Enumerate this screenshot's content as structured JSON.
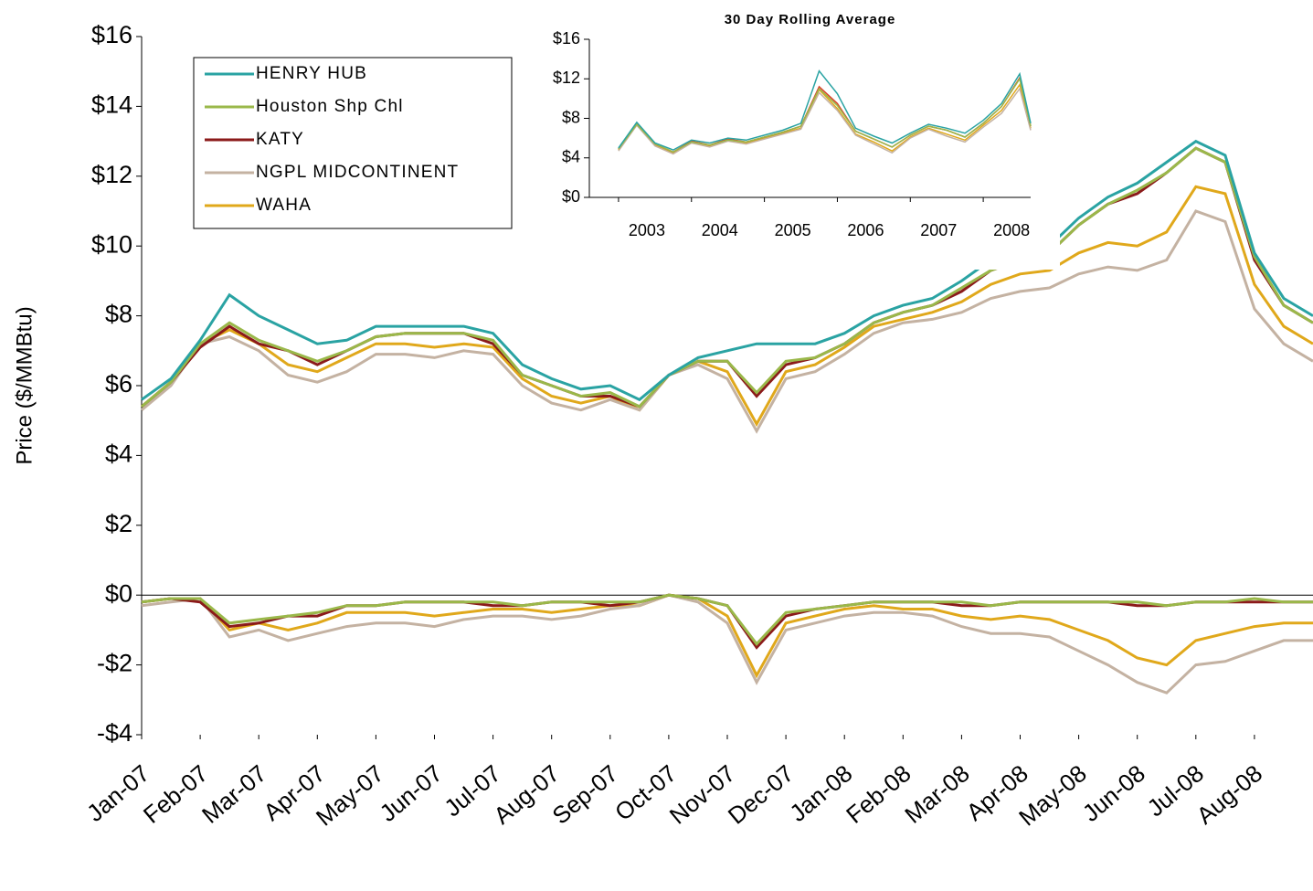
{
  "chart_data": [
    {
      "type": "line",
      "ylabel": "Price ($/MMBtu)",
      "legend": "upper left",
      "x": [
        0,
        0.5,
        1,
        1.5,
        2,
        2.5,
        3,
        3.5,
        4,
        4.5,
        5,
        5.5,
        6,
        6.5,
        7,
        7.5,
        8,
        8.5,
        9,
        9.5,
        10,
        10.5,
        11,
        11.5,
        12,
        12.5,
        13,
        13.5,
        14,
        14.5,
        15,
        15.5,
        16,
        16.5,
        17,
        17.5,
        18,
        18.5,
        19,
        19.5,
        20
      ],
      "xlim": [
        0,
        20
      ],
      "xticks": [
        {
          "value": 0,
          "label": "Jan-07"
        },
        {
          "value": 1,
          "label": "Feb-07"
        },
        {
          "value": 2,
          "label": "Mar-07"
        },
        {
          "value": 3,
          "label": "Apr-07"
        },
        {
          "value": 4,
          "label": "May-07"
        },
        {
          "value": 5,
          "label": "Jun-07"
        },
        {
          "value": 6,
          "label": "Jul-07"
        },
        {
          "value": 7,
          "label": "Aug-07"
        },
        {
          "value": 8,
          "label": "Sep-07"
        },
        {
          "value": 9,
          "label": "Oct-07"
        },
        {
          "value": 10,
          "label": "Nov-07"
        },
        {
          "value": 11,
          "label": "Dec-07"
        },
        {
          "value": 12,
          "label": "Jan-08"
        },
        {
          "value": 13,
          "label": "Feb-08"
        },
        {
          "value": 14,
          "label": "Mar-08"
        },
        {
          "value": 15,
          "label": "Apr-08"
        },
        {
          "value": 16,
          "label": "May-08"
        },
        {
          "value": 17,
          "label": "Jun-08"
        },
        {
          "value": 18,
          "label": "Jul-08"
        },
        {
          "value": 19,
          "label": "Aug-08"
        }
      ],
      "ylim": [
        -4,
        16
      ],
      "yticks": [
        {
          "value": 16,
          "label": "$16"
        },
        {
          "value": 14,
          "label": "$14"
        },
        {
          "value": 12,
          "label": "$12"
        },
        {
          "value": 10,
          "label": "$10"
        },
        {
          "value": 8,
          "label": "$8"
        },
        {
          "value": 6,
          "label": "$6"
        },
        {
          "value": 4,
          "label": "$4"
        },
        {
          "value": 2,
          "label": "$2"
        },
        {
          "value": 0,
          "label": "$0"
        },
        {
          "value": -2,
          "label": "-$2"
        },
        {
          "value": -4,
          "label": "-$4"
        }
      ],
      "grid": false,
      "series": [
        {
          "name": "HENRY HUB",
          "color": "#2aa3a3",
          "values": [
            5.6,
            6.2,
            7.3,
            8.6,
            8.0,
            7.6,
            7.2,
            7.3,
            7.7,
            7.7,
            7.7,
            7.7,
            7.5,
            6.6,
            6.2,
            5.9,
            6.0,
            5.6,
            6.3,
            6.8,
            7.0,
            7.2,
            7.2,
            7.2,
            7.5,
            8.0,
            8.3,
            8.5,
            9.0,
            9.6,
            9.8,
            10.0,
            10.8,
            11.4,
            11.8,
            12.4,
            13.0,
            12.6,
            9.8,
            8.5,
            8.0
          ]
        },
        {
          "name": "Houston Shp Chl",
          "color": "#9ab84a",
          "values": [
            5.4,
            6.1,
            7.2,
            7.8,
            7.3,
            7.0,
            6.7,
            7.0,
            7.4,
            7.5,
            7.5,
            7.5,
            7.3,
            6.3,
            6.0,
            5.7,
            5.8,
            5.4,
            6.3,
            6.7,
            6.7,
            5.8,
            6.7,
            6.8,
            7.2,
            7.8,
            8.1,
            8.3,
            8.8,
            9.3,
            9.6,
            9.8,
            10.6,
            11.2,
            11.6,
            12.1,
            12.8,
            12.4,
            9.7,
            8.3,
            7.8
          ],
          "basis": [
            -0.2,
            -0.1,
            -0.1,
            -0.8,
            -0.7,
            -0.6,
            -0.5,
            -0.3,
            -0.3,
            -0.2,
            -0.2,
            -0.2,
            -0.2,
            -0.3,
            -0.2,
            -0.2,
            -0.2,
            -0.2,
            0.0,
            -0.1,
            -0.3,
            -1.4,
            -0.5,
            -0.4,
            -0.3,
            -0.2,
            -0.2,
            -0.2,
            -0.2,
            -0.3,
            -0.2,
            -0.2,
            -0.2,
            -0.2,
            -0.2,
            -0.3,
            -0.2,
            -0.2,
            -0.1,
            -0.2,
            -0.2
          ]
        },
        {
          "name": "KATY",
          "color": "#8b1a1a",
          "values": [
            5.4,
            6.1,
            7.1,
            7.7,
            7.2,
            7.0,
            6.6,
            7.0,
            7.4,
            7.5,
            7.5,
            7.5,
            7.2,
            6.3,
            6.0,
            5.7,
            5.7,
            5.4,
            6.3,
            6.7,
            6.7,
            5.7,
            6.6,
            6.8,
            7.2,
            7.8,
            8.1,
            8.3,
            8.7,
            9.3,
            9.6,
            9.8,
            10.6,
            11.2,
            11.5,
            12.1,
            12.8,
            12.4,
            9.6,
            8.3,
            7.8
          ],
          "basis": [
            -0.2,
            -0.1,
            -0.2,
            -0.9,
            -0.8,
            -0.6,
            -0.6,
            -0.3,
            -0.3,
            -0.2,
            -0.2,
            -0.2,
            -0.3,
            -0.3,
            -0.2,
            -0.2,
            -0.3,
            -0.2,
            0.0,
            -0.1,
            -0.3,
            -1.5,
            -0.6,
            -0.4,
            -0.3,
            -0.2,
            -0.2,
            -0.2,
            -0.3,
            -0.3,
            -0.2,
            -0.2,
            -0.2,
            -0.2,
            -0.3,
            -0.3,
            -0.2,
            -0.2,
            -0.2,
            -0.2,
            -0.2
          ]
        },
        {
          "name": "NGPL MIDCONTINENT",
          "color": "#c4b2a2",
          "values": [
            5.3,
            6.0,
            7.2,
            7.4,
            7.0,
            6.3,
            6.1,
            6.4,
            6.9,
            6.9,
            6.8,
            7.0,
            6.9,
            6.0,
            5.5,
            5.3,
            5.6,
            5.3,
            6.3,
            6.6,
            6.2,
            4.7,
            6.2,
            6.4,
            6.9,
            7.5,
            7.8,
            7.9,
            8.1,
            8.5,
            8.7,
            8.8,
            9.2,
            9.4,
            9.3,
            9.6,
            11.0,
            10.7,
            8.2,
            7.2,
            6.7
          ],
          "basis": [
            -0.3,
            -0.2,
            -0.1,
            -1.2,
            -1.0,
            -1.3,
            -1.1,
            -0.9,
            -0.8,
            -0.8,
            -0.9,
            -0.7,
            -0.6,
            -0.6,
            -0.7,
            -0.6,
            -0.4,
            -0.3,
            0.0,
            -0.2,
            -0.8,
            -2.5,
            -1.0,
            -0.8,
            -0.6,
            -0.5,
            -0.5,
            -0.6,
            -0.9,
            -1.1,
            -1.1,
            -1.2,
            -1.6,
            -2.0,
            -2.5,
            -2.8,
            -2.0,
            -1.9,
            -1.6,
            -1.3,
            -1.3
          ]
        },
        {
          "name": "WAHA",
          "color": "#e0a81b",
          "values": [
            5.4,
            6.1,
            7.2,
            7.6,
            7.2,
            6.6,
            6.4,
            6.8,
            7.2,
            7.2,
            7.1,
            7.2,
            7.1,
            6.2,
            5.7,
            5.5,
            5.7,
            5.3,
            6.3,
            6.7,
            6.4,
            4.9,
            6.4,
            6.6,
            7.1,
            7.7,
            7.9,
            8.1,
            8.4,
            8.9,
            9.2,
            9.3,
            9.8,
            10.1,
            10.0,
            10.4,
            11.7,
            11.5,
            8.9,
            7.7,
            7.2
          ],
          "basis": [
            -0.2,
            -0.1,
            -0.1,
            -1.0,
            -0.8,
            -1.0,
            -0.8,
            -0.5,
            -0.5,
            -0.5,
            -0.6,
            -0.5,
            -0.4,
            -0.4,
            -0.5,
            -0.4,
            -0.3,
            -0.3,
            0.0,
            -0.1,
            -0.6,
            -2.3,
            -0.8,
            -0.6,
            -0.4,
            -0.3,
            -0.4,
            -0.4,
            -0.6,
            -0.7,
            -0.6,
            -0.7,
            -1.0,
            -1.3,
            -1.8,
            -2.0,
            -1.3,
            -1.1,
            -0.9,
            -0.8,
            -0.8
          ]
        }
      ]
    },
    {
      "type": "line",
      "title": "30 Day Rolling Average",
      "x": [
        2003,
        2003.25,
        2003.5,
        2003.75,
        2004,
        2004.25,
        2004.5,
        2004.75,
        2005,
        2005.25,
        2005.5,
        2005.75,
        2006,
        2006.25,
        2006.5,
        2006.75,
        2007,
        2007.25,
        2007.5,
        2007.75,
        2008,
        2008.25,
        2008.5,
        2008.65
      ],
      "xlim": [
        2002.6,
        2008.65
      ],
      "xticks": [
        2003,
        2004,
        2005,
        2006,
        2007,
        2008
      ],
      "ylim": [
        0,
        16
      ],
      "yticks": [
        {
          "value": 16,
          "label": "$16"
        },
        {
          "value": 12,
          "label": "$12"
        },
        {
          "value": 8,
          "label": "$8"
        },
        {
          "value": 4,
          "label": "$4"
        },
        {
          "value": 0,
          "label": "$0"
        }
      ],
      "series": [
        {
          "color": "#2aa3a3",
          "values": [
            5.0,
            7.6,
            5.5,
            4.8,
            5.8,
            5.5,
            6.0,
            5.8,
            6.3,
            6.8,
            7.5,
            12.8,
            10.5,
            7.0,
            6.2,
            5.5,
            6.5,
            7.4,
            7.0,
            6.5,
            7.8,
            9.5,
            12.5,
            7.5
          ]
        },
        {
          "color": "#9ab84a",
          "values": [
            4.9,
            7.4,
            5.4,
            4.6,
            5.6,
            5.3,
            5.8,
            5.6,
            6.1,
            6.6,
            7.2,
            11.0,
            9.3,
            6.7,
            5.9,
            5.1,
            6.3,
            7.2,
            6.8,
            6.1,
            7.5,
            9.2,
            12.0,
            7.2
          ]
        },
        {
          "color": "#d9412b",
          "values": [
            4.9,
            7.5,
            5.4,
            4.6,
            5.7,
            5.3,
            5.9,
            5.6,
            6.1,
            6.6,
            7.2,
            11.2,
            9.5,
            6.7,
            5.9,
            5.1,
            6.3,
            7.2,
            6.8,
            6.1,
            7.5,
            9.2,
            12.1,
            7.2
          ]
        },
        {
          "color": "#c4b2a2",
          "values": [
            4.7,
            7.3,
            5.2,
            4.4,
            5.5,
            5.1,
            5.7,
            5.4,
            5.9,
            6.4,
            6.9,
            10.6,
            8.8,
            6.3,
            5.4,
            4.5,
            6.0,
            6.9,
            6.2,
            5.6,
            7.1,
            8.5,
            11.0,
            6.8
          ]
        },
        {
          "color": "#e0a81b",
          "values": [
            4.8,
            7.4,
            5.3,
            4.5,
            5.6,
            5.2,
            5.8,
            5.5,
            6.0,
            6.5,
            7.0,
            10.9,
            9.0,
            6.4,
            5.6,
            4.7,
            6.1,
            7.0,
            6.4,
            5.8,
            7.3,
            8.8,
            11.4,
            7.0
          ]
        }
      ]
    }
  ]
}
